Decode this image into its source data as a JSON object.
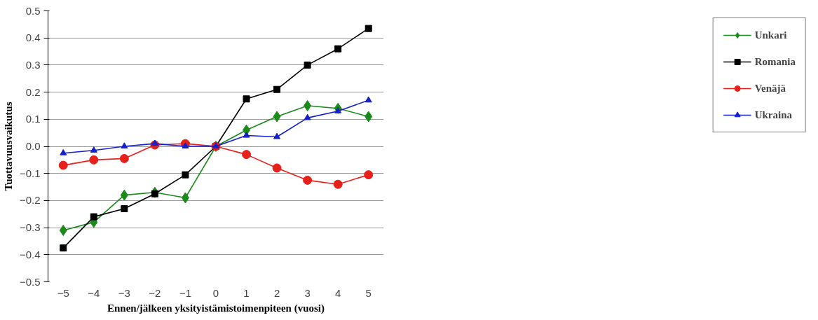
{
  "chart_data": {
    "type": "line",
    "xlabel": "Ennen/jälkeen yksityistämistoimenpiteen (vuosi)",
    "ylabel": "Tuottavuusvaikutus",
    "x": [
      -5,
      -4,
      -3,
      -2,
      -1,
      0,
      1,
      2,
      3,
      4,
      5
    ],
    "series": [
      {
        "name": "Unkari",
        "color": "#1a8a1a",
        "marker": "diamond",
        "values": [
          -0.31,
          -0.28,
          -0.18,
          -0.17,
          -0.19,
          0,
          0.06,
          0.11,
          0.15,
          0.14,
          0.11
        ]
      },
      {
        "name": "Romania",
        "color": "#000000",
        "marker": "square",
        "values": [
          -0.375,
          -0.26,
          -0.23,
          -0.175,
          -0.105,
          0,
          0.175,
          0.21,
          0.3,
          0.36,
          0.435
        ]
      },
      {
        "name": "Venäjä",
        "color": "#e8201c",
        "marker": "circle",
        "values": [
          -0.07,
          -0.05,
          -0.045,
          0.005,
          0.01,
          0,
          -0.03,
          -0.08,
          -0.125,
          -0.14,
          -0.105
        ]
      },
      {
        "name": "Ukraina",
        "color": "#1420c8",
        "marker": "triangle",
        "values": [
          -0.025,
          -0.015,
          0,
          0.01,
          0,
          0,
          0.04,
          0.035,
          0.105,
          0.13,
          0.17
        ]
      }
    ],
    "xlim": [
      -5.5,
      5.5
    ],
    "xticks": [
      -5,
      -4,
      -3,
      -2,
      -1,
      0,
      1,
      2,
      3,
      4,
      5
    ],
    "ylim": [
      -0.5,
      0.5
    ],
    "yticks": [
      -0.5,
      -0.4,
      -0.3,
      -0.2,
      -0.1,
      {
        "value": 0,
        "label": "0.0"
      },
      0.1,
      0.2,
      0.3,
      0.4,
      0.5
    ],
    "grid": "y",
    "legend": "right",
    "line_style": "solid"
  }
}
